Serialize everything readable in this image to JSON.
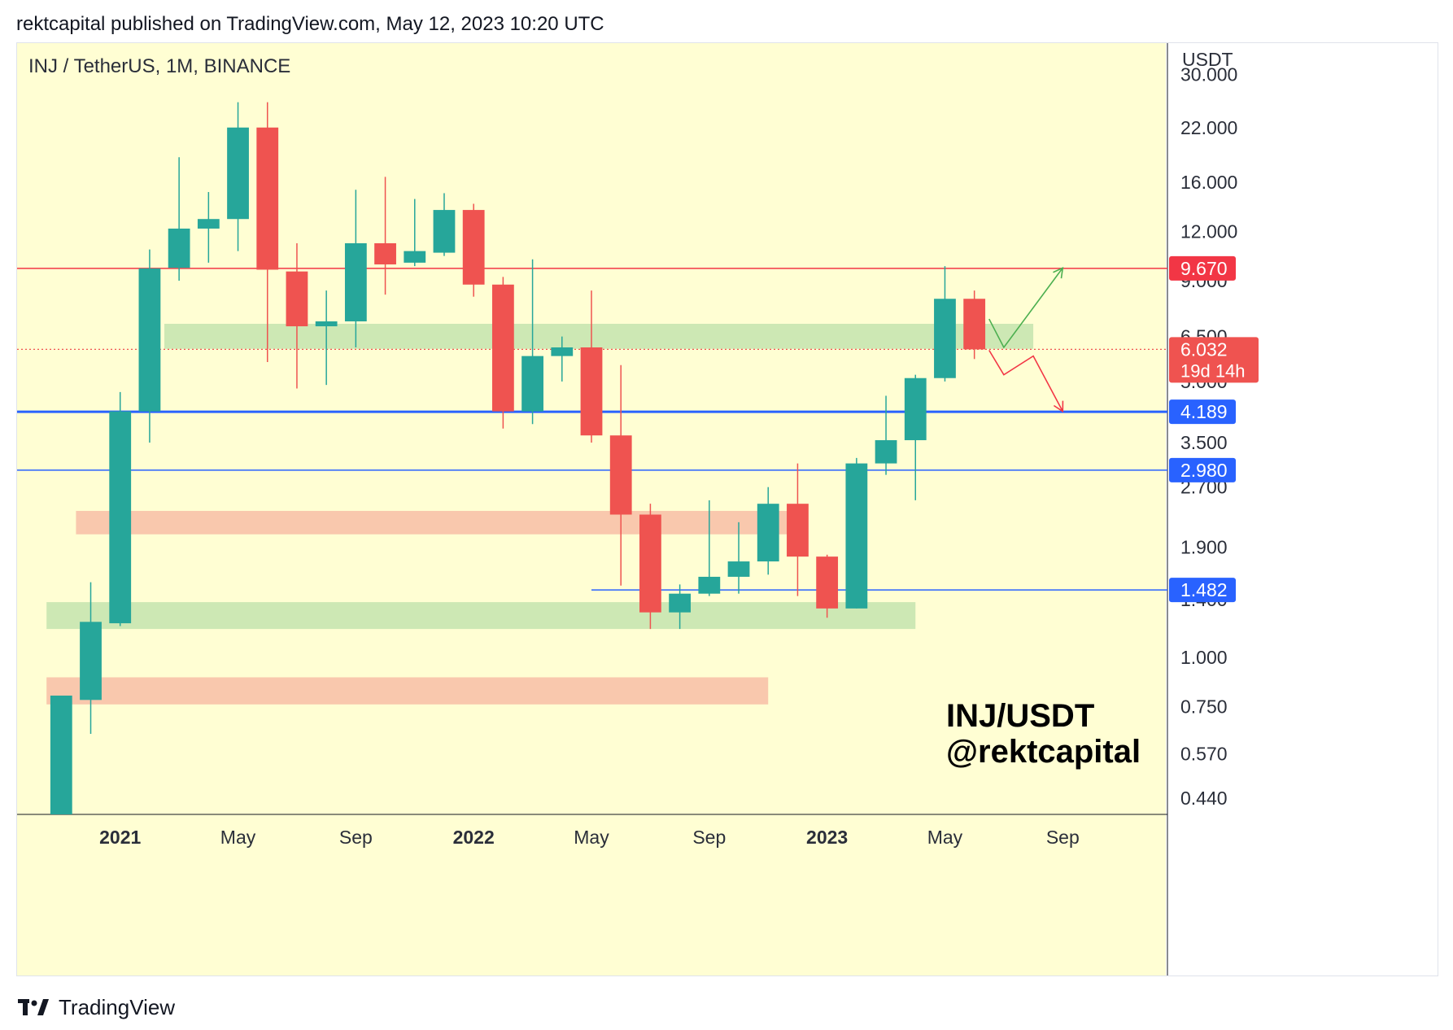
{
  "header": {
    "published_line": "rektcapital published on TradingView.com, May 12, 2023 10:20 UTC"
  },
  "footer": {
    "brand": "TradingView",
    "logo_icon": "tradingview-logo-icon"
  },
  "colors": {
    "background": "#fffed3",
    "bull": "#26a69a",
    "bear": "#ef5350",
    "resistance_line": "#f23645",
    "support_line": "#2962ff",
    "green_zone": "#c8e6b0",
    "red_zone": "#f8c2a8",
    "arrow_up": "#4caf50",
    "arrow_down": "#f23645"
  },
  "chart_data": {
    "type": "candlestick",
    "symbol_line": "INJ / TetherUS, 1M, BINANCE",
    "watermark_line1": "INJ/USDT",
    "watermark_line2": "@rektcapital",
    "yaxis_title": "USDT",
    "yscale": "log",
    "ylim": [
      0.4,
      36
    ],
    "xlim": [
      "2020-10",
      "2023-12"
    ],
    "y_ticks": [
      "30.000",
      "22.000",
      "16.000",
      "12.000",
      "9.000",
      "6.500",
      "5.000",
      "3.500",
      "2.700",
      "1.900",
      "1.400",
      "1.000",
      "0.750",
      "0.570",
      "0.440"
    ],
    "y_tick_values": [
      30,
      22,
      16,
      12,
      9,
      6.5,
      5,
      3.5,
      2.7,
      1.9,
      1.4,
      1.0,
      0.75,
      0.57,
      0.44
    ],
    "x_ticks": [
      {
        "label": "2021",
        "date": "2021-01",
        "bold": true
      },
      {
        "label": "May",
        "date": "2021-05",
        "bold": false
      },
      {
        "label": "Sep",
        "date": "2021-09",
        "bold": false
      },
      {
        "label": "2022",
        "date": "2022-01",
        "bold": true
      },
      {
        "label": "May",
        "date": "2022-05",
        "bold": false
      },
      {
        "label": "Sep",
        "date": "2022-09",
        "bold": false
      },
      {
        "label": "2023",
        "date": "2023-01",
        "bold": true
      },
      {
        "label": "May",
        "date": "2023-05",
        "bold": false
      },
      {
        "label": "Sep",
        "date": "2023-09",
        "bold": false
      }
    ],
    "candles": [
      {
        "date": "2020-11",
        "open": 0.4,
        "high": 0.8,
        "low": 0.4,
        "close": 0.8
      },
      {
        "date": "2020-12",
        "open": 0.78,
        "high": 1.55,
        "low": 0.64,
        "close": 1.23
      },
      {
        "date": "2021-01",
        "open": 1.22,
        "high": 4.7,
        "low": 1.2,
        "close": 4.2
      },
      {
        "date": "2021-02",
        "open": 4.2,
        "high": 10.8,
        "low": 3.5,
        "close": 9.67
      },
      {
        "date": "2021-03",
        "open": 9.7,
        "high": 18.5,
        "low": 9.0,
        "close": 12.2
      },
      {
        "date": "2021-04",
        "open": 12.2,
        "high": 15.1,
        "low": 10.0,
        "close": 12.9
      },
      {
        "date": "2021-05",
        "open": 12.9,
        "high": 25.5,
        "low": 10.7,
        "close": 22.0
      },
      {
        "date": "2021-06",
        "open": 22.0,
        "high": 25.5,
        "low": 5.6,
        "close": 9.6
      },
      {
        "date": "2021-07",
        "open": 9.5,
        "high": 11.2,
        "low": 4.8,
        "close": 6.9
      },
      {
        "date": "2021-08",
        "open": 6.9,
        "high": 8.5,
        "low": 4.9,
        "close": 7.1
      },
      {
        "date": "2021-09",
        "open": 7.1,
        "high": 15.3,
        "low": 6.1,
        "close": 11.2
      },
      {
        "date": "2021-10",
        "open": 11.2,
        "high": 16.5,
        "low": 8.3,
        "close": 9.9
      },
      {
        "date": "2021-11",
        "open": 10.0,
        "high": 14.5,
        "low": 9.8,
        "close": 10.7
      },
      {
        "date": "2021-12",
        "open": 10.6,
        "high": 15.0,
        "low": 10.4,
        "close": 13.6
      },
      {
        "date": "2022-01",
        "open": 13.6,
        "high": 14.1,
        "low": 8.2,
        "close": 8.8
      },
      {
        "date": "2022-02",
        "open": 8.8,
        "high": 9.2,
        "low": 3.8,
        "close": 4.2
      },
      {
        "date": "2022-03",
        "open": 4.2,
        "high": 10.2,
        "low": 3.9,
        "close": 5.8
      },
      {
        "date": "2022-04",
        "open": 5.8,
        "high": 6.5,
        "low": 5.0,
        "close": 6.1
      },
      {
        "date": "2022-05",
        "open": 6.1,
        "high": 8.5,
        "low": 3.5,
        "close": 3.65
      },
      {
        "date": "2022-06",
        "open": 3.65,
        "high": 5.5,
        "low": 1.52,
        "close": 2.3
      },
      {
        "date": "2022-07",
        "open": 2.3,
        "high": 2.45,
        "low": 1.18,
        "close": 1.3
      },
      {
        "date": "2022-08",
        "open": 1.3,
        "high": 1.53,
        "low": 1.18,
        "close": 1.45
      },
      {
        "date": "2022-09",
        "open": 1.45,
        "high": 2.5,
        "low": 1.43,
        "close": 1.6
      },
      {
        "date": "2022-10",
        "open": 1.6,
        "high": 2.2,
        "low": 1.45,
        "close": 1.75
      },
      {
        "date": "2022-11",
        "open": 1.75,
        "high": 2.7,
        "low": 1.62,
        "close": 2.45
      },
      {
        "date": "2022-12",
        "open": 2.45,
        "high": 3.1,
        "low": 1.43,
        "close": 1.8
      },
      {
        "date": "2023-01",
        "open": 1.8,
        "high": 1.82,
        "low": 1.26,
        "close": 1.33
      },
      {
        "date": "2023-02",
        "open": 1.33,
        "high": 3.2,
        "low": 1.33,
        "close": 3.1
      },
      {
        "date": "2023-03",
        "open": 3.1,
        "high": 4.6,
        "low": 2.9,
        "close": 3.55
      },
      {
        "date": "2023-04",
        "open": 3.55,
        "high": 5.2,
        "low": 2.5,
        "close": 5.1
      },
      {
        "date": "2023-05",
        "open": 5.1,
        "high": 9.8,
        "low": 5.0,
        "close": 8.1
      },
      {
        "date": "2023-06",
        "open": 8.1,
        "high": 8.5,
        "low": 5.7,
        "close": 6.03
      }
    ],
    "horizontal_lines": [
      {
        "value": 9.67,
        "label": "9.670",
        "style": "resistance",
        "from": "2020-10"
      },
      {
        "value": 4.189,
        "label": "4.189",
        "style": "support",
        "from": "2020-10"
      },
      {
        "value": 2.98,
        "label": "2.980",
        "style": "support",
        "from": "2020-10"
      },
      {
        "value": 1.482,
        "label": "1.482",
        "style": "support",
        "from": "2022-05"
      }
    ],
    "current_price": {
      "value": 6.032,
      "label": "6.032",
      "countdown": "19d 14h"
    },
    "zones": [
      {
        "type": "green",
        "low": 6.05,
        "high": 7.0,
        "from": "2021-03",
        "to": "2023-08"
      },
      {
        "type": "red",
        "low": 2.05,
        "high": 2.35,
        "from": "2020-12",
        "to": "2022-12"
      },
      {
        "type": "green",
        "low": 1.18,
        "high": 1.38,
        "from": "2020-11",
        "to": "2023-04"
      },
      {
        "type": "red",
        "low": 0.76,
        "high": 0.89,
        "from": "2020-11",
        "to": "2022-11"
      }
    ],
    "projections": [
      {
        "type": "up",
        "points": [
          [
            "2023-06",
            7.2
          ],
          [
            "2023-07",
            6.1
          ],
          [
            "2023-09",
            9.7
          ]
        ]
      },
      {
        "type": "down",
        "points": [
          [
            "2023-06",
            6.0
          ],
          [
            "2023-07",
            5.2
          ],
          [
            "2023-08",
            5.8
          ],
          [
            "2023-09",
            4.2
          ]
        ]
      }
    ]
  }
}
